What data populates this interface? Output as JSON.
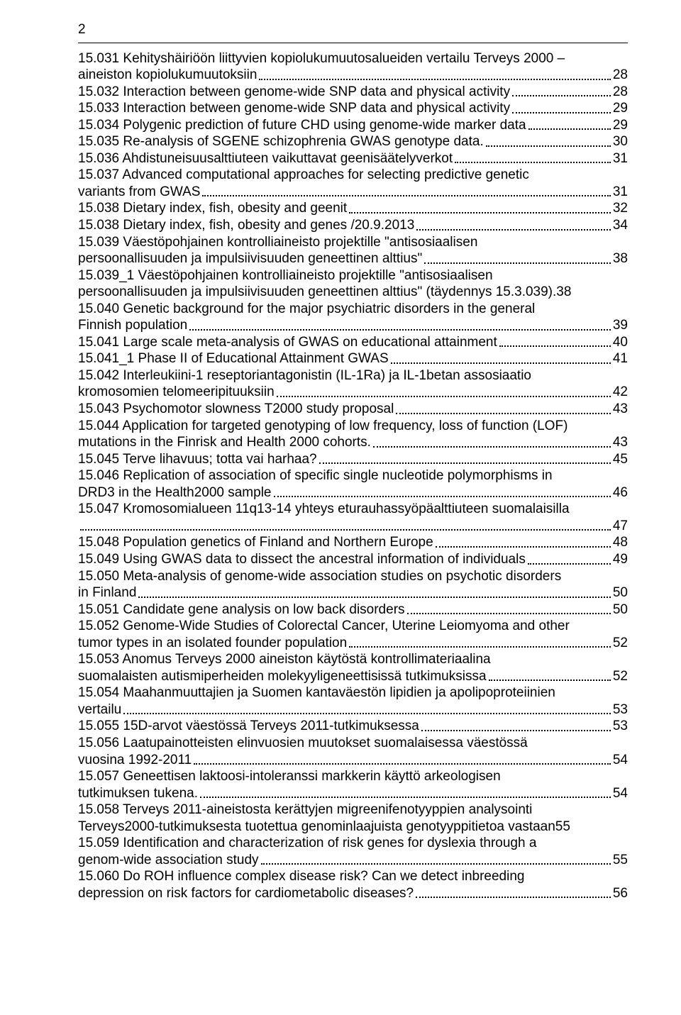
{
  "page_number": "2",
  "entries": [
    {
      "title": "15.031 Kehityshäiriöön liittyvien kopiolukumuutosalueiden vertailu Terveys 2000 – aineiston kopiolukumuutoksiin",
      "page": "28",
      "multiline": true,
      "split_at": "15.031 Kehityshäiriöön liittyvien kopiolukumuutosalueiden vertailu Terveys 2000 –"
    },
    {
      "title": "15.032 Interaction between genome-wide SNP data and physical activity",
      "page": "28"
    },
    {
      "title": "15.033 Interaction between genome-wide SNP data and physical activity",
      "page": "29"
    },
    {
      "title": "15.034 Polygenic prediction of future CHD using genome-wide marker data",
      "page": "29"
    },
    {
      "title": "15.035 Re-analysis of SGENE schizophrenia GWAS genotype data.",
      "page": "30"
    },
    {
      "title": "15.036 Ahdistuneisuusalttiuteen vaikuttavat geenisäätelyverkot",
      "page": "31"
    },
    {
      "title": "15.037 Advanced computational approaches for selecting predictive genetic variants from GWAS",
      "page": "31",
      "multiline": true,
      "split_at": "15.037 Advanced computational approaches for selecting predictive genetic"
    },
    {
      "title": "15.038 Dietary index, fish, obesity and geenit",
      "page": "32"
    },
    {
      "title": "15.038 Dietary index, fish, obesity and genes /20.9.2013",
      "page": "34"
    },
    {
      "title": "15.039 Väestöpohjainen kontrolliaineisto projektille \"antisosiaalisen persoonallisuuden ja impulsiivisuuden geneettinen alttius\"",
      "page": "38",
      "multiline": true,
      "split_at": "15.039 Väestöpohjainen kontrolliaineisto projektille \"antisosiaalisen"
    },
    {
      "title": "15.039_1 Väestöpohjainen kontrolliaineisto projektille \"antisosiaalisen persoonallisuuden ja impulsiivisuuden geneettinen alttius\" (täydennys 15.3.039).",
      "page": "38",
      "multiline": true,
      "split_at": "15.039_1 Väestöpohjainen kontrolliaineisto projektille \"antisosiaalisen",
      "nodots": true
    },
    {
      "title": "15.040 Genetic background for the major psychiatric disorders in the general Finnish population",
      "page": "39",
      "multiline": true,
      "split_at": "15.040 Genetic background for the major psychiatric disorders in the general"
    },
    {
      "title": "15.041 Large scale meta-analysis of GWAS on educational attainment",
      "page": "40"
    },
    {
      "title": "15.041_1 Phase II of Educational Attainment GWAS",
      "page": "41"
    },
    {
      "title": "15.042 Interleukiini-1 reseptoriantagonistin (IL-1Ra) ja IL-1betan assosiaatio kromosomien telomeeripituuksiin",
      "page": "42",
      "multiline": true,
      "split_at": "15.042 Interleukiini-1 reseptoriantagonistin (IL-1Ra) ja IL-1betan assosiaatio"
    },
    {
      "title": "15.043 Psychomotor slowness T2000 study proposal",
      "page": "43"
    },
    {
      "title": "15.044 Application for targeted genotyping of low frequency, loss of function (LOF) mutations in the Finrisk and Health 2000 cohorts.",
      "page": "43",
      "multiline": true,
      "split_at": "15.044 Application for targeted genotyping of low frequency, loss of function (LOF)"
    },
    {
      "title": "15.045 Terve lihavuus; totta vai harhaa?",
      "page": "45"
    },
    {
      "title": "15.046 Replication of association of specific single nucleotide polymorphisms in DRD3 in the Health2000 sample",
      "page": "46",
      "multiline": true,
      "split_at": "15.046 Replication of association of specific single nucleotide polymorphisms in"
    },
    {
      "title": "15.047 Kromosomialueen 11q13-14 yhteys eturauhassyöpäalttiuteen suomalaisilla",
      "page": "47",
      "multiline": true,
      "split_at": "15.047 Kromosomialueen 11q13-14 yhteys eturauhassyöpäalttiuteen suomalaisilla",
      "second_empty": true
    },
    {
      "title": "15.048 Population genetics of Finland and Northern Europe",
      "page": "48"
    },
    {
      "title": "15.049 Using GWAS data to dissect the ancestral information of individuals",
      "page": "49"
    },
    {
      "title": "15.050 Meta-analysis of genome-wide association studies on psychotic disorders in Finland",
      "page": "50",
      "multiline": true,
      "split_at": "15.050 Meta-analysis of genome-wide association studies on psychotic disorders"
    },
    {
      "title": "15.051 Candidate gene analysis on low back disorders",
      "page": "50"
    },
    {
      "title": "15.052 Genome-Wide Studies of Colorectal Cancer, Uterine Leiomyoma and other tumor types in an isolated founder population",
      "page": "52",
      "multiline": true,
      "split_at": "15.052 Genome-Wide Studies of Colorectal Cancer, Uterine Leiomyoma and other"
    },
    {
      "title": "15.053 Anomus Terveys 2000 aineiston käytöstä kontrollimateriaalina suomalaisten autismiperheiden molekyyligeneettisissä tutkimuksissa",
      "page": "52",
      "multiline": true,
      "split_at": "15.053 Anomus Terveys 2000 aineiston käytöstä kontrollimateriaalina"
    },
    {
      "title": "15.054 Maahanmuuttajien ja Suomen kantaväestön lipidien ja apolipoproteiinien vertailu",
      "page": "53",
      "multiline": true,
      "split_at": "15.054 Maahanmuuttajien ja Suomen kantaväestön lipidien ja apolipoproteiinien"
    },
    {
      "title": "15.055 15D-arvot väestössä Terveys 2011-tutkimuksessa",
      "page": "53"
    },
    {
      "title": "15.056 Laatupainotteisten elinvuosien muutokset suomalaisessa väestössä vuosina 1992-2011",
      "page": "54",
      "multiline": true,
      "split_at": "15.056 Laatupainotteisten elinvuosien muutokset suomalaisessa väestössä"
    },
    {
      "title": "15.057 Geneettisen laktoosi-intoleranssi markkerin käyttö arkeologisen tutkimuksen tukena.",
      "page": "54",
      "multiline": true,
      "split_at": "15.057 Geneettisen laktoosi-intoleranssi markkerin käyttö arkeologisen"
    },
    {
      "title": "15.058 Terveys 2011-aineistosta kerättyjen migreenifenotyyppien analysointi Terveys2000-tutkimuksesta tuotettua genominlaajuista genotyyppitietoa vastaan",
      "page": "55",
      "multiline": true,
      "split_at": "15.058 Terveys 2011-aineistosta kerättyjen migreenifenotyyppien analysointi",
      "nodots": true
    },
    {
      "title": "15.059 Identification and characterization of risk genes for dyslexia through a genom-wide association study",
      "page": "55",
      "multiline": true,
      "split_at": "15.059 Identification and characterization of risk genes for dyslexia through a"
    },
    {
      "title": "15.060 Do ROH influence complex disease risk? Can we detect inbreeding depression on risk factors for cardiometabolic diseases?",
      "page": "56",
      "multiline": true,
      "split_at": "15.060 Do ROH influence complex disease risk? Can we detect inbreeding"
    }
  ]
}
